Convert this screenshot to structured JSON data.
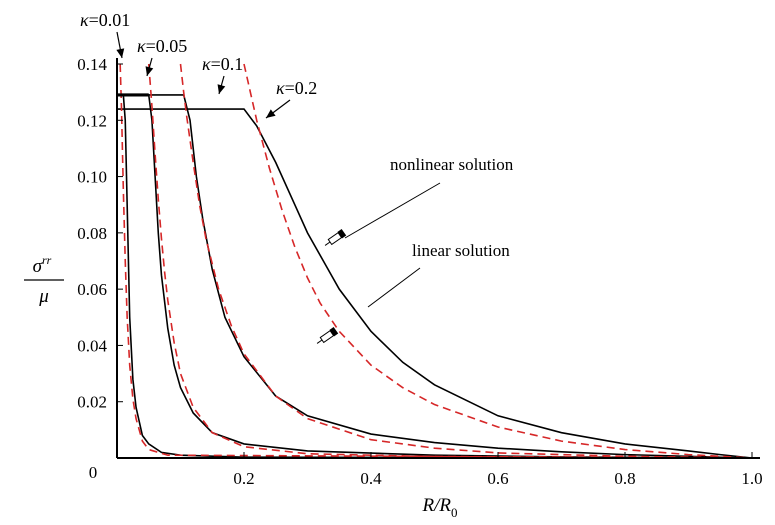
{
  "chart_data": {
    "type": "line",
    "xlabel": {
      "main": "R/R",
      "sub": "0"
    },
    "ylabel": {
      "num": "σ",
      "num_sup": "rr",
      "den": "μ"
    },
    "xlim": [
      0,
      1.0
    ],
    "ylim": [
      0,
      0.14
    ],
    "x_ticks": [
      0.2,
      0.4,
      0.6,
      0.8,
      1.0
    ],
    "x_tick_labels": [
      "0.2",
      "0.4",
      "0.6",
      "0.8",
      "1.0"
    ],
    "y_ticks": [
      0.02,
      0.04,
      0.06,
      0.08,
      0.1,
      0.12,
      0.14
    ],
    "y_tick_labels": [
      "0.02",
      "0.04",
      "0.06",
      "0.08",
      "0.10",
      "0.12",
      "0.14"
    ],
    "origin_label": "0",
    "grid": false,
    "kappa_labels": [
      {
        "greek": "κ",
        "text": "=0.01"
      },
      {
        "greek": "κ",
        "text": "=0.05"
      },
      {
        "greek": "κ",
        "text": "=0.1"
      },
      {
        "greek": "κ",
        "text": "=0.2"
      }
    ],
    "annotations": [
      "nonlinear solution",
      "linear solution"
    ],
    "colors": {
      "nonlinear": "#000000",
      "linear": "#d62728"
    },
    "series": [
      {
        "group": "nonlinear",
        "kappa": 0.01,
        "x": [
          0.0,
          0.01,
          0.013,
          0.016,
          0.02,
          0.025,
          0.03,
          0.04,
          0.05,
          0.07,
          0.1,
          0.2,
          1.0
        ],
        "y": [
          0.129,
          0.129,
          0.12,
          0.09,
          0.05,
          0.028,
          0.018,
          0.008,
          0.005,
          0.002,
          0.001,
          0.0003,
          0.0
        ]
      },
      {
        "group": "nonlinear",
        "kappa": 0.05,
        "x": [
          0.0,
          0.05,
          0.055,
          0.06,
          0.065,
          0.07,
          0.08,
          0.09,
          0.1,
          0.12,
          0.15,
          0.2,
          0.3,
          0.5,
          0.7,
          1.0
        ],
        "y": [
          0.129,
          0.129,
          0.12,
          0.1,
          0.08,
          0.065,
          0.046,
          0.033,
          0.025,
          0.016,
          0.009,
          0.005,
          0.0025,
          0.001,
          0.0004,
          0.0
        ]
      },
      {
        "group": "nonlinear",
        "kappa": 0.1,
        "x": [
          0.0,
          0.105,
          0.115,
          0.125,
          0.135,
          0.15,
          0.17,
          0.2,
          0.25,
          0.3,
          0.4,
          0.5,
          0.6,
          0.7,
          0.8,
          1.0
        ],
        "y": [
          0.129,
          0.129,
          0.12,
          0.1,
          0.085,
          0.067,
          0.05,
          0.036,
          0.022,
          0.015,
          0.0085,
          0.0055,
          0.0035,
          0.0022,
          0.0012,
          0.0
        ]
      },
      {
        "group": "nonlinear",
        "kappa": 0.2,
        "x": [
          0.0,
          0.2,
          0.22,
          0.25,
          0.28,
          0.3,
          0.33,
          0.35,
          0.4,
          0.45,
          0.5,
          0.6,
          0.7,
          0.8,
          0.9,
          0.95,
          1.0
        ],
        "y": [
          0.124,
          0.124,
          0.118,
          0.105,
          0.09,
          0.08,
          0.068,
          0.06,
          0.045,
          0.034,
          0.026,
          0.015,
          0.009,
          0.005,
          0.0025,
          0.0012,
          0.0
        ]
      },
      {
        "group": "linear",
        "kappa": 0.01,
        "x": [
          0.005,
          0.007,
          0.01,
          0.013,
          0.016,
          0.02,
          0.025,
          0.03,
          0.04,
          0.05,
          0.08,
          1.0
        ],
        "y": [
          0.14,
          0.125,
          0.095,
          0.07,
          0.05,
          0.033,
          0.021,
          0.014,
          0.006,
          0.003,
          0.001,
          0.0
        ]
      },
      {
        "group": "linear",
        "kappa": 0.05,
        "x": [
          0.05,
          0.055,
          0.06,
          0.065,
          0.07,
          0.075,
          0.08,
          0.09,
          0.1,
          0.12,
          0.15,
          0.2,
          0.3,
          0.5,
          0.7,
          1.0
        ],
        "y": [
          0.14,
          0.125,
          0.108,
          0.092,
          0.078,
          0.066,
          0.056,
          0.041,
          0.03,
          0.018,
          0.009,
          0.004,
          0.0015,
          0.0005,
          0.0002,
          0.0
        ]
      },
      {
        "group": "linear",
        "kappa": 0.1,
        "x": [
          0.1,
          0.105,
          0.11,
          0.12,
          0.13,
          0.14,
          0.16,
          0.18,
          0.2,
          0.25,
          0.3,
          0.4,
          0.5,
          0.6,
          0.8,
          1.0
        ],
        "y": [
          0.14,
          0.13,
          0.121,
          0.105,
          0.09,
          0.078,
          0.06,
          0.047,
          0.037,
          0.022,
          0.014,
          0.0065,
          0.0035,
          0.0018,
          0.0006,
          0.0
        ]
      },
      {
        "group": "linear",
        "kappa": 0.2,
        "x": [
          0.2,
          0.21,
          0.22,
          0.24,
          0.26,
          0.28,
          0.3,
          0.32,
          0.35,
          0.4,
          0.45,
          0.5,
          0.6,
          0.7,
          0.8,
          0.9,
          1.0
        ],
        "y": [
          0.14,
          0.13,
          0.12,
          0.103,
          0.088,
          0.075,
          0.064,
          0.055,
          0.045,
          0.033,
          0.025,
          0.019,
          0.011,
          0.006,
          0.003,
          0.0012,
          0.0
        ]
      }
    ]
  }
}
